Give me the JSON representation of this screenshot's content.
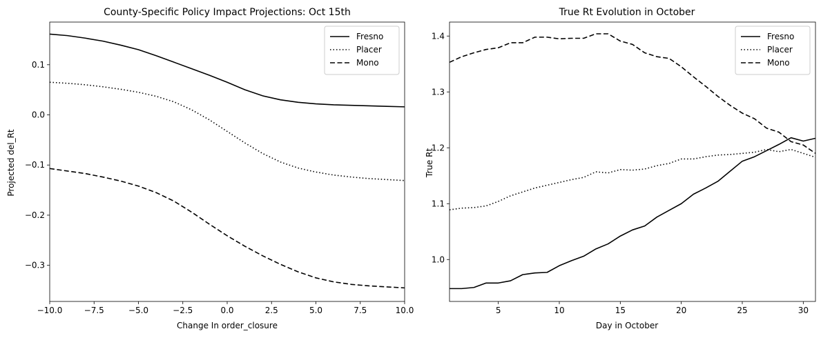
{
  "chart_data": [
    {
      "type": "line",
      "title": "County-Specific Policy Impact Projections: Oct 15th",
      "xlabel": "Change In order_closure",
      "ylabel": "Projected del_Rt",
      "xlim": [
        -10,
        10
      ],
      "ylim": [
        -0.372,
        0.185
      ],
      "xticks": [
        -10,
        -7.5,
        -5,
        -2.5,
        0,
        2.5,
        5,
        7.5,
        10
      ],
      "xtick_labels": [
        "−10.0",
        "−7.5",
        "−5.0",
        "−2.5",
        "0.0",
        "2.5",
        "5.0",
        "7.5",
        "10.0"
      ],
      "yticks": [
        0.1,
        0.0,
        -0.1,
        -0.2,
        -0.3
      ],
      "ytick_labels": [
        "0.1",
        "0.0",
        "−0.1",
        "−0.2",
        "−0.3"
      ],
      "grid": false,
      "legend_position": "top-right",
      "x": [
        -10,
        -9,
        -8,
        -7,
        -6,
        -5,
        -4,
        -3,
        -2,
        -1,
        0,
        1,
        2,
        3,
        4,
        5,
        6,
        7,
        8,
        9,
        10
      ],
      "series": [
        {
          "name": "Fresno",
          "style": "solid",
          "values": [
            0.161,
            0.158,
            0.153,
            0.147,
            0.139,
            0.13,
            0.118,
            0.105,
            0.092,
            0.079,
            0.065,
            0.05,
            0.038,
            0.03,
            0.025,
            0.022,
            0.02,
            0.019,
            0.018,
            0.017,
            0.016
          ]
        },
        {
          "name": "Placer",
          "style": "dotted",
          "values": [
            0.065,
            0.063,
            0.06,
            0.056,
            0.051,
            0.045,
            0.037,
            0.026,
            0.01,
            -0.01,
            -0.033,
            -0.056,
            -0.077,
            -0.094,
            -0.106,
            -0.114,
            -0.12,
            -0.124,
            -0.127,
            -0.129,
            -0.131
          ]
        },
        {
          "name": "Mono",
          "style": "dashed",
          "values": [
            -0.107,
            -0.112,
            -0.117,
            -0.124,
            -0.132,
            -0.142,
            -0.155,
            -0.172,
            -0.194,
            -0.218,
            -0.241,
            -0.262,
            -0.281,
            -0.298,
            -0.313,
            -0.325,
            -0.333,
            -0.338,
            -0.341,
            -0.343,
            -0.345
          ]
        }
      ]
    },
    {
      "type": "line",
      "title": "True Rt Evolution in October",
      "xlabel": "Day in October",
      "ylabel": "True Rt",
      "xlim": [
        1,
        31
      ],
      "ylim": [
        0.925,
        1.425
      ],
      "xticks": [
        5,
        10,
        15,
        20,
        25,
        30
      ],
      "xtick_labels": [
        "5",
        "10",
        "15",
        "20",
        "25",
        "30"
      ],
      "yticks": [
        1.0,
        1.1,
        1.2,
        1.3,
        1.4
      ],
      "ytick_labels": [
        "1.0",
        "1.1",
        "1.2",
        "1.3",
        "1.4"
      ],
      "grid": false,
      "legend_position": "top-right",
      "x": [
        1,
        2,
        3,
        4,
        5,
        6,
        7,
        8,
        9,
        10,
        11,
        12,
        13,
        14,
        15,
        16,
        17,
        18,
        19,
        20,
        21,
        22,
        23,
        24,
        25,
        26,
        27,
        28,
        29,
        30,
        31
      ],
      "series": [
        {
          "name": "Fresno",
          "style": "solid",
          "values": [
            0.948,
            0.948,
            0.95,
            0.958,
            0.958,
            0.962,
            0.973,
            0.976,
            0.977,
            0.989,
            0.998,
            1.006,
            1.019,
            1.028,
            1.042,
            1.053,
            1.06,
            1.076,
            1.088,
            1.1,
            1.117,
            1.128,
            1.14,
            1.158,
            1.176,
            1.184,
            1.195,
            1.206,
            1.218,
            1.212,
            1.217
          ]
        },
        {
          "name": "Placer",
          "style": "dotted",
          "values": [
            1.089,
            1.092,
            1.093,
            1.096,
            1.104,
            1.114,
            1.121,
            1.128,
            1.133,
            1.138,
            1.143,
            1.147,
            1.157,
            1.155,
            1.161,
            1.16,
            1.162,
            1.168,
            1.172,
            1.18,
            1.18,
            1.184,
            1.187,
            1.188,
            1.19,
            1.192,
            1.197,
            1.193,
            1.197,
            1.19,
            1.183
          ]
        },
        {
          "name": "Mono",
          "style": "dashed",
          "values": [
            1.353,
            1.363,
            1.37,
            1.376,
            1.379,
            1.388,
            1.388,
            1.398,
            1.398,
            1.395,
            1.396,
            1.396,
            1.404,
            1.404,
            1.391,
            1.385,
            1.37,
            1.363,
            1.36,
            1.345,
            1.327,
            1.31,
            1.292,
            1.276,
            1.262,
            1.252,
            1.235,
            1.228,
            1.211,
            1.205,
            1.19
          ]
        }
      ]
    }
  ]
}
